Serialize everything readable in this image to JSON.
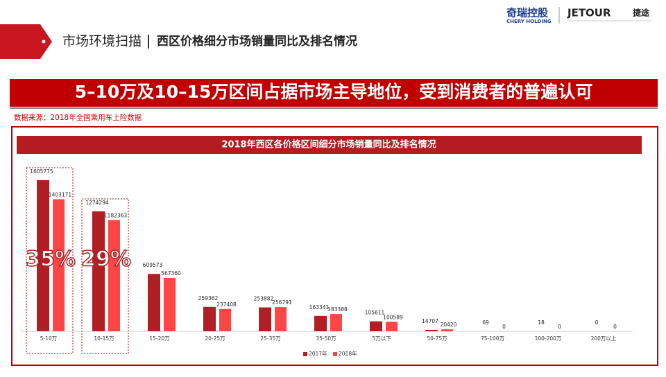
{
  "header": {
    "section": "市场环境扫描",
    "title": "西区价格细分市场销量同比及排名情况"
  },
  "logos": {
    "chery_cn": "奇瑞控股",
    "chery_en": "CHERY HOLDING",
    "jetour": "JETOUR",
    "jetour_cn": "捷途"
  },
  "banner": "5–10万及10–15万区间占据市场主导地位，受到消费者的普遍认可",
  "source": "数据来源：2018年全国乘用车上险数据",
  "chart_data": {
    "type": "bar",
    "title": "2018年西区各价格区间细分市场销量同比及排名情况",
    "categories": [
      "5-10万",
      "10-15万",
      "15-20万",
      "20-25万",
      "25-35万",
      "35-50万",
      "5万以下",
      "50-75万",
      "75-100万",
      "100-200万",
      "200万以上"
    ],
    "series": [
      {
        "name": "2017年",
        "color": "#b01f24",
        "values": [
          1605775,
          1274294,
          609573,
          259362,
          253882,
          163341,
          105611,
          14707,
          69,
          18,
          0
        ]
      },
      {
        "name": "2018年",
        "color": "#ff4545",
        "values": [
          1403171,
          1182363,
          567360,
          237408,
          256791,
          183388,
          100589,
          20420,
          0,
          0,
          0
        ]
      }
    ],
    "annotations": [
      "35%",
      "29%"
    ]
  }
}
